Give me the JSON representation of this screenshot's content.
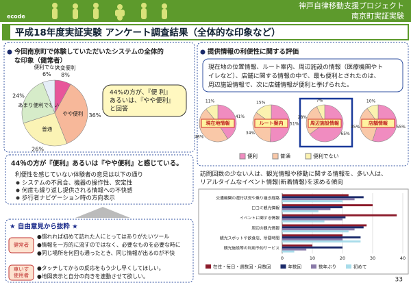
{
  "header": {
    "logo": "ecode",
    "project": "神戸自律移動支援プロジェクト",
    "site": "南京町実証実験"
  },
  "title": "平成18年度実証実験 アンケート調査結果（全体的な印象など）",
  "left": {
    "heading": [
      "今回南京町で体験していただいたシステムの全体的",
      "な印象（健常者）"
    ],
    "callout": [
      "44%の方が、『便 利』",
      "あるいは、『やや便利』",
      "と回答"
    ],
    "summary": {
      "headline": "44％の方が『便利』あるいは『やや便利』と感じている。",
      "intro": "利便性を感じていない体験者の意見は以下の通り",
      "bullets": [
        "システムの不具合、機器の操作性、安定性",
        "何度も繰り返し提供される情報への不快感",
        "歩行者ナビゲーション時の方向表示"
      ]
    },
    "opinions": {
      "heading": "★ 自由意見から抜粋 ★",
      "groups": [
        {
          "label": [
            "健常者"
          ],
          "items": [
            "●慣れれば初めて訪れた人にとってはありがたいツール",
            "●情報を一方的に流すのではなく、必要なものを必要な時に",
            "●同じ場所を何回も通ったとき、同じ情報が出るのが不快"
          ]
        },
        {
          "label": [
            "車いす",
            "使用者"
          ],
          "items": [
            "●タッチしてからの反応をもう少し早くしてほしい。",
            "●地図表示と自分の向きを連動させて欲しい。"
          ]
        }
      ]
    }
  },
  "right": {
    "heading": "提供情報の利便性に関する評価",
    "text": [
      "現在地の位置情報、ルート案内、周辺施設の情報（医療機関やト",
      "イレなど）、店舗に関する情報の中で、最も便利とされたのは、",
      "周辺施設情報で、次に店舗情報が便利と挙げられた。"
    ],
    "text2": [
      "訪問回数の少ない人は、観光情報や移動に関する情報を、多い人は、",
      "リアルタイムなイベント情報(新着情報)を求める傾向"
    ]
  },
  "page_number": "33",
  "chart_data": [
    {
      "type": "pie",
      "categories": [
        "大変便利",
        "やや便利",
        "普通",
        "あまり便利でない",
        "便利でない"
      ],
      "values": [
        8,
        36,
        26,
        24,
        6
      ],
      "value_labels": [
        "8%",
        "36%",
        "26%",
        "24%",
        "6%"
      ],
      "colors": [
        "#e8559a",
        "#f7b89a",
        "#fbf3b5",
        "#d6ecc9",
        "#e6eef8"
      ]
    },
    {
      "type": "pies",
      "categories": [
        "便利",
        "普通",
        "便利でない"
      ],
      "colors": [
        "#f08cc0",
        "#f9c8a8",
        "#fbf2b0"
      ],
      "legend": "bottom",
      "series": [
        {
          "name": "現在地情報",
          "values": [
            41,
            48,
            11
          ],
          "value_labels": [
            "41%",
            "48%",
            "11%"
          ]
        },
        {
          "name": "ルート案内",
          "values": [
            51,
            34,
            15
          ],
          "value_labels": [
            "51%",
            "34%",
            "15%"
          ]
        },
        {
          "name": "周辺施設情報",
          "values": [
            65,
            28,
            7
          ],
          "value_labels": [
            "65%",
            "28%",
            "7%"
          ]
        },
        {
          "name": "店舗情報",
          "values": [
            55,
            35,
            10
          ],
          "value_labels": [
            "55%",
            "35%",
            "10%"
          ]
        }
      ]
    },
    {
      "type": "hbar",
      "categories": [
        "交通機関の運行状況や乗り継ぎ経路",
        "口コミ観光情報",
        "イベントに関する情報",
        "周辺の観光情報",
        "観光スポットや飲食店、所要時間",
        "観光施設等の利用予約サービス"
      ],
      "series": [
        {
          "name": "在住・毎日・週数回・月数回",
          "color": "#8b1a2a",
          "values": [
            22,
            30,
            38,
            28,
            20,
            10
          ]
        },
        {
          "name": "年数回",
          "color": "#1a2a6a",
          "values": [
            27,
            20,
            21,
            27,
            26,
            20
          ]
        },
        {
          "name": "数年ぶり",
          "color": "#8a7aa8",
          "values": [
            24,
            16,
            20,
            24,
            20,
            8
          ]
        },
        {
          "name": "初めて",
          "color": "#a8dcea",
          "values": [
            20,
            12,
            14,
            22,
            26,
            4
          ]
        }
      ],
      "xlim": [
        0,
        40
      ],
      "xticks": [
        0,
        10,
        20,
        30,
        40
      ],
      "grid": true,
      "legend": "bottom"
    }
  ]
}
